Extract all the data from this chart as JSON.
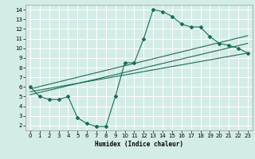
{
  "xlabel": "Humidex (Indice chaleur)",
  "ylabel": "",
  "bg_color": "#d4ece6",
  "grid_color": "#b8ddd6",
  "line_color": "#1a6b5a",
  "xlim": [
    -0.5,
    23.5
  ],
  "ylim": [
    1.5,
    14.5
  ],
  "xticks": [
    0,
    1,
    2,
    3,
    4,
    5,
    6,
    7,
    8,
    9,
    10,
    11,
    12,
    13,
    14,
    15,
    16,
    17,
    18,
    19,
    20,
    21,
    22,
    23
  ],
  "yticks": [
    2,
    3,
    4,
    5,
    6,
    7,
    8,
    9,
    10,
    11,
    12,
    13,
    14
  ],
  "main_x": [
    0,
    1,
    2,
    3,
    4,
    5,
    6,
    7,
    8,
    9,
    10,
    11,
    12,
    13,
    14,
    15,
    16,
    17,
    18,
    19,
    20,
    21,
    22,
    23
  ],
  "main_y": [
    6.0,
    5.0,
    4.7,
    4.7,
    5.0,
    2.8,
    2.2,
    1.9,
    1.9,
    5.0,
    8.5,
    8.5,
    11.0,
    14.0,
    13.8,
    13.3,
    12.5,
    12.2,
    12.2,
    11.2,
    10.5,
    10.3,
    10.0,
    9.5
  ],
  "line1_x": [
    0,
    23
  ],
  "line1_y": [
    5.5,
    9.5
  ],
  "line2_x": [
    0,
    23
  ],
  "line2_y": [
    5.2,
    10.5
  ],
  "line3_x": [
    0,
    23
  ],
  "line3_y": [
    5.8,
    11.3
  ]
}
